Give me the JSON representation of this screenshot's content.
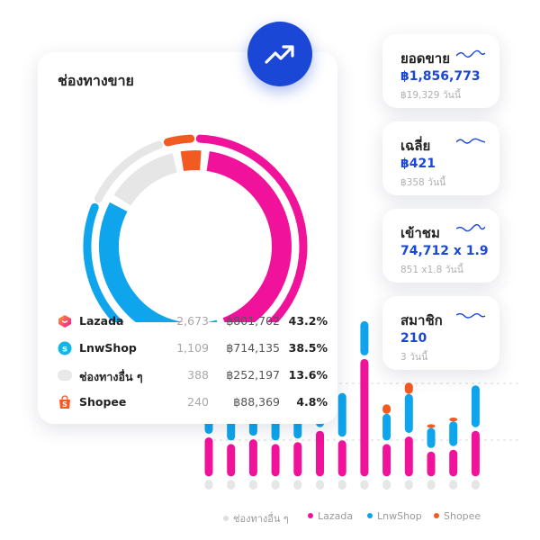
{
  "channels_card": {
    "title": "ช่องทางขาย",
    "rows": [
      {
        "name": "Lazada",
        "count": "2,673",
        "amount": "฿801,702",
        "percent": "43.2%",
        "icon": "lazada-icon"
      },
      {
        "name": "LnwShop",
        "count": "1,109",
        "amount": "฿714,135",
        "percent": "38.5%",
        "icon": "lnwshop-icon"
      },
      {
        "name": "ช่องทางอื่น ๆ",
        "count": "388",
        "amount": "฿252,197",
        "percent": "13.6%",
        "icon": "other-channel-icon"
      },
      {
        "name": "Shopee",
        "count": "240",
        "amount": "฿88,369",
        "percent": "4.8%",
        "icon": "shopee-icon"
      }
    ]
  },
  "stats": [
    {
      "title": "ยอดขาย",
      "value": "฿1,856,773",
      "sub": "฿19,329 วันนี้"
    },
    {
      "title": "เฉลี่ย",
      "value": "฿421",
      "sub": "฿358 วันนี้"
    },
    {
      "title": "เข้าชม",
      "value": "74,712 x 1.9",
      "sub": "851 x1.8 วันนี้"
    },
    {
      "title": "สมาชิก",
      "value": "210",
      "sub": "3 วันนี้"
    }
  ],
  "colors": {
    "lazada": "#f0129a",
    "lnwshop": "#0ea5ec",
    "other": "#e6e6e6",
    "shopee": "#f15b22",
    "accent": "#1a47d6"
  },
  "chart_data": [
    {
      "type": "pie",
      "title": "ช่องทางขาย",
      "rings": [
        {
          "name": "outer",
          "slices": [
            {
              "label": "Lazada",
              "value": 43.2
            },
            {
              "label": "LnwShop",
              "value": 38.5
            },
            {
              "label": "ช่องทางอื่น ๆ",
              "value": 13.6
            },
            {
              "label": "Shopee",
              "value": 4.8
            }
          ]
        },
        {
          "name": "inner",
          "slices": [
            {
              "label": "Lazada",
              "value": 43.2
            },
            {
              "label": "LnwShop",
              "value": 38.5
            },
            {
              "label": "ช่องทางอื่น ๆ",
              "value": 13.6
            },
            {
              "label": "Shopee",
              "value": 4.8
            }
          ]
        }
      ]
    },
    {
      "type": "bar",
      "stacked": true,
      "legend": [
        "ช่องทางอื่น ๆ",
        "Lazada",
        "LnwShop",
        "Shopee"
      ],
      "ylim": [
        0,
        180
      ],
      "series": [
        {
          "name": "ช่องทางอื่น ๆ",
          "values": [
            14,
            14,
            14,
            14,
            14,
            14,
            14,
            14,
            14,
            14,
            14,
            14,
            14
          ]
        },
        {
          "name": "Lazada",
          "values": [
            45,
            38,
            43,
            38,
            40,
            52,
            42,
            128,
            38,
            46,
            30,
            32,
            52
          ]
        },
        {
          "name": "LnwShop",
          "values": [
            40,
            38,
            40,
            38,
            46,
            58,
            50,
            40,
            32,
            45,
            25,
            30,
            48
          ]
        },
        {
          "name": "Shopee",
          "values": [
            0,
            0,
            0,
            0,
            0,
            0,
            0,
            0,
            0,
            0,
            0,
            0,
            0
          ]
        }
      ],
      "shopee_caps": [
        0,
        0,
        0,
        0,
        0,
        0,
        0,
        0,
        10,
        12,
        4,
        4,
        0
      ]
    }
  ]
}
